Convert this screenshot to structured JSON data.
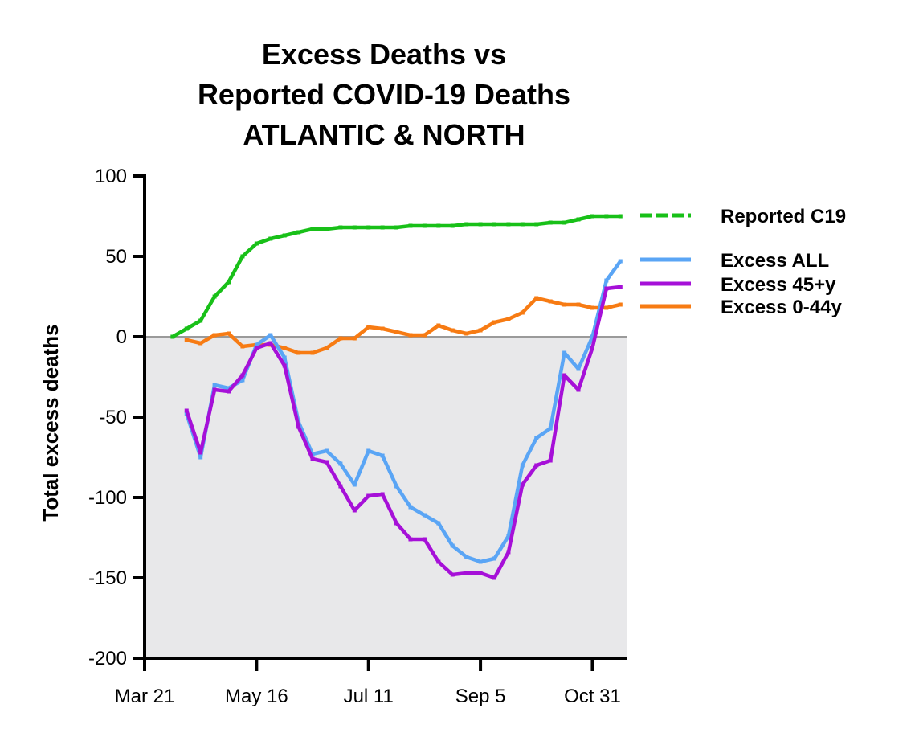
{
  "chart_data": {
    "type": "line",
    "title_lines": [
      "Excess Deaths vs",
      "Reported COVID-19 Deaths",
      "ATLANTIC & NORTH"
    ],
    "xlabel": "",
    "ylabel": "Total excess deaths",
    "xlim": [
      0,
      34.5
    ],
    "ylim": [
      -200,
      100
    ],
    "y_ticks": [
      100,
      50,
      0,
      -50,
      -100,
      -150,
      -200
    ],
    "y_tick_labels": [
      "100",
      "50",
      "0",
      "-50",
      "-100",
      "-150",
      "-200"
    ],
    "x_ticks": [
      0,
      8,
      16,
      24,
      32
    ],
    "x_tick_labels": [
      "Mar 21",
      "May 16",
      "Jul 11",
      "Sep 5",
      "Oct 31"
    ],
    "x_unit": "weeks since Mar 21",
    "negative_region_shaded": true,
    "zero_line": true,
    "series": [
      {
        "name": "Reported C19",
        "color": "#18c018",
        "x": [
          2,
          3,
          4,
          5,
          6,
          7,
          8,
          9,
          10,
          11,
          12,
          13,
          14,
          15,
          16,
          17,
          18,
          19,
          20,
          21,
          22,
          23,
          24,
          25,
          26,
          27,
          28,
          29,
          30,
          31,
          32,
          33,
          34
        ],
        "values": [
          0,
          5,
          10,
          25,
          34,
          50,
          58,
          61,
          63,
          65,
          67,
          67,
          68,
          68,
          68,
          68,
          68,
          69,
          69,
          69,
          69,
          70,
          70,
          70,
          70,
          70,
          70,
          71,
          71,
          73,
          75,
          75,
          75
        ]
      },
      {
        "name": "Excess ALL",
        "color": "#5aa5f5",
        "x": [
          3,
          4,
          5,
          6,
          7,
          8,
          9,
          10,
          11,
          12,
          13,
          14,
          15,
          16,
          17,
          18,
          19,
          20,
          21,
          22,
          23,
          24,
          25,
          26,
          27,
          28,
          29,
          30,
          31,
          32,
          33,
          34
        ],
        "values": [
          -48,
          -75,
          -30,
          -32,
          -27,
          -5,
          1,
          -13,
          -53,
          -73,
          -71,
          -79,
          -92,
          -71,
          -74,
          -93,
          -106,
          -111,
          -116,
          -130,
          -137,
          -140,
          -138,
          -124,
          -80,
          -63,
          -57,
          -10,
          -20,
          0,
          35,
          47
        ]
      },
      {
        "name": "Excess 45+y",
        "color": "#a610d8",
        "x": [
          3,
          4,
          5,
          6,
          7,
          8,
          9,
          10,
          11,
          12,
          13,
          14,
          15,
          16,
          17,
          18,
          19,
          20,
          21,
          22,
          23,
          24,
          25,
          26,
          27,
          28,
          29,
          30,
          31,
          32,
          33,
          34
        ],
        "values": [
          -46,
          -72,
          -33,
          -34,
          -24,
          -7,
          -4,
          -18,
          -56,
          -76,
          -78,
          -93,
          -108,
          -99,
          -98,
          -116,
          -126,
          -126,
          -140,
          -148,
          -147,
          -147,
          -150,
          -134,
          -92,
          -80,
          -77,
          -24,
          -33,
          -7,
          30,
          31
        ]
      },
      {
        "name": "Excess 0-44y",
        "color": "#f77b13",
        "x": [
          3,
          4,
          5,
          6,
          7,
          8,
          9,
          10,
          11,
          12,
          13,
          14,
          15,
          16,
          17,
          18,
          19,
          20,
          21,
          22,
          23,
          24,
          25,
          26,
          27,
          28,
          29,
          30,
          31,
          32,
          33,
          34
        ],
        "values": [
          -2,
          -4,
          1,
          2,
          -6,
          -5,
          -5,
          -7,
          -10,
          -10,
          -7,
          -1,
          -1,
          6,
          5,
          3,
          1,
          1,
          7,
          4,
          2,
          4,
          9,
          11,
          15,
          24,
          22,
          20,
          20,
          18,
          18,
          20
        ]
      }
    ]
  }
}
